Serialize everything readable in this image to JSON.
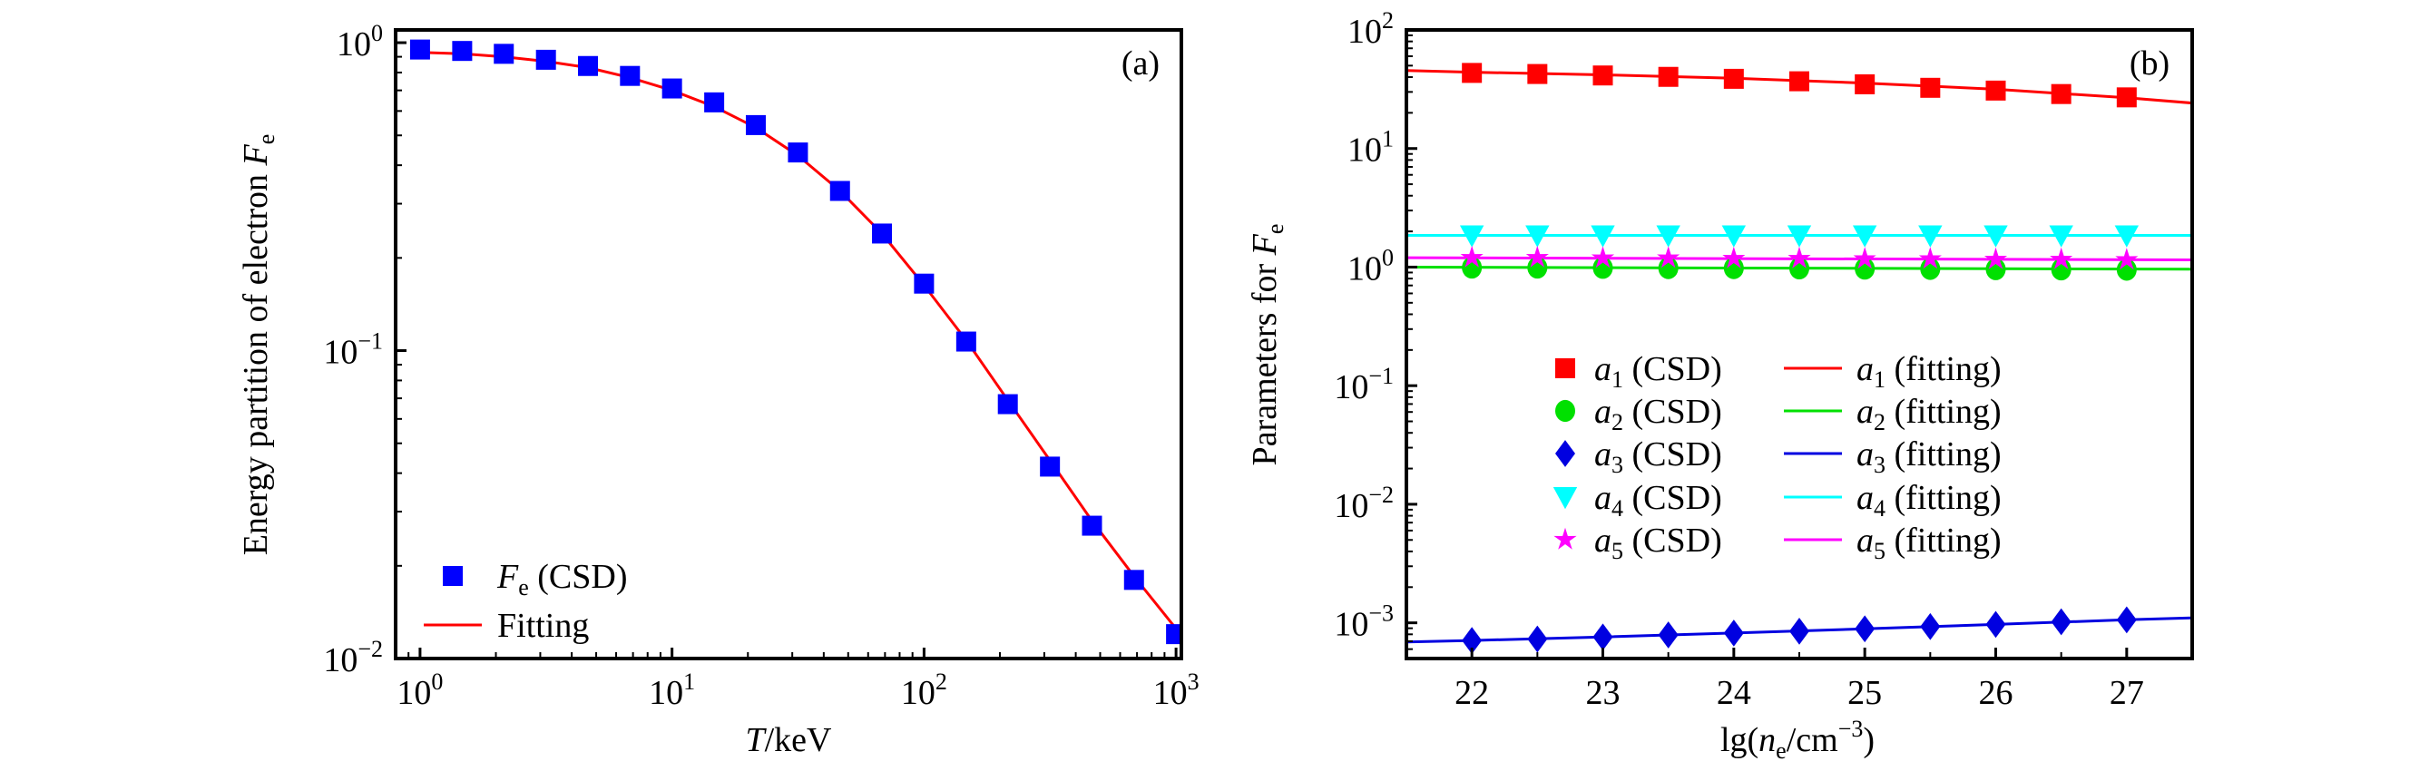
{
  "chart_data": [
    {
      "type": "scatter",
      "panel_label": "(a)",
      "xlabel": {
        "symbol": "T",
        "text": "/keV"
      },
      "ylabel": {
        "text": "Energy partition of electron ",
        "symbol": "F",
        "sub": "e"
      },
      "xscale": "log",
      "yscale": "log",
      "xlim": [
        0.8,
        1050
      ],
      "ylim": [
        0.01,
        1.1
      ],
      "grid": false,
      "legend_placement": "bottom-left",
      "xticks": [
        {
          "value": 1,
          "base": "10",
          "exp": "0"
        },
        {
          "value": 10,
          "base": "10",
          "exp": "1"
        },
        {
          "value": 100,
          "base": "10",
          "exp": "2"
        },
        {
          "value": 1000,
          "base": "10",
          "exp": "3"
        }
      ],
      "yticks": [
        {
          "value": 1,
          "base": "10",
          "exp": "0"
        },
        {
          "value": 0.1,
          "base": "10",
          "exp": "−1"
        },
        {
          "value": 0.01,
          "base": "10",
          "exp": "−2"
        }
      ],
      "series": [
        {
          "name": {
            "symbol": "F",
            "sub": "e",
            "text": " (CSD)"
          },
          "kind": "marker",
          "marker": "square",
          "color": "#0000ff",
          "x": [
            1,
            1.47,
            2.15,
            3.16,
            4.64,
            6.81,
            10,
            14.7,
            21.5,
            31.6,
            46.4,
            68.1,
            100,
            147,
            215,
            316,
            464,
            681,
            1000
          ],
          "y": [
            0.95,
            0.94,
            0.92,
            0.88,
            0.84,
            0.78,
            0.71,
            0.64,
            0.54,
            0.44,
            0.33,
            0.24,
            0.165,
            0.107,
            0.067,
            0.042,
            0.027,
            0.018,
            0.012
          ]
        },
        {
          "name": {
            "text": "Fitting"
          },
          "kind": "line",
          "color": "#ff0000",
          "x": [
            1,
            1.47,
            2.15,
            3.16,
            4.64,
            6.81,
            10,
            14.7,
            21.5,
            31.6,
            46.4,
            68.1,
            100,
            147,
            215,
            316,
            464,
            681,
            1000
          ],
          "y": [
            0.93,
            0.92,
            0.9,
            0.87,
            0.83,
            0.77,
            0.7,
            0.62,
            0.53,
            0.43,
            0.33,
            0.24,
            0.163,
            0.108,
            0.069,
            0.044,
            0.028,
            0.0185,
            0.0125
          ]
        }
      ]
    },
    {
      "type": "scatter",
      "panel_label": "(b)",
      "xlabel": {
        "pre": "lg(",
        "symbol": "n",
        "sub": "e",
        "mid": "/cm",
        "exp": "−3",
        "post": ")"
      },
      "ylabel": {
        "text": "Parameters for ",
        "symbol": "F",
        "sub": "e"
      },
      "xscale": "linear",
      "yscale": "log",
      "xlim": [
        21.5,
        27.5
      ],
      "ylim": [
        0.0005,
        100
      ],
      "grid": false,
      "legend_placement": "center",
      "xticks": [
        {
          "value": 22,
          "label": "22"
        },
        {
          "value": 23,
          "label": "23"
        },
        {
          "value": 24,
          "label": "24"
        },
        {
          "value": 25,
          "label": "25"
        },
        {
          "value": 26,
          "label": "26"
        },
        {
          "value": 27,
          "label": "27"
        }
      ],
      "yticks": [
        {
          "value": 100,
          "base": "10",
          "exp": "2"
        },
        {
          "value": 10,
          "base": "10",
          "exp": "1"
        },
        {
          "value": 1,
          "base": "10",
          "exp": "0"
        },
        {
          "value": 0.1,
          "base": "10",
          "exp": "−1"
        },
        {
          "value": 0.01,
          "base": "10",
          "exp": "−2"
        },
        {
          "value": 0.001,
          "base": "10",
          "exp": "−3"
        }
      ],
      "series": [
        {
          "name": {
            "symbol": "a",
            "sub": "1",
            "text": " (CSD)"
          },
          "kind": "marker",
          "marker": "square",
          "color": "#ff0000",
          "x": [
            22,
            22.5,
            23,
            23.5,
            24,
            24.5,
            25,
            25.5,
            26,
            26.5,
            27
          ],
          "y": [
            43.4,
            42.5,
            41.3,
            40.2,
            38.7,
            36.9,
            34.8,
            32.5,
            30.8,
            28.8,
            27.0
          ]
        },
        {
          "name": {
            "symbol": "a",
            "sub": "2",
            "text": " (CSD)"
          },
          "kind": "marker",
          "marker": "circle",
          "color": "#00e000",
          "x": [
            22,
            22.5,
            23,
            23.5,
            24,
            24.5,
            25,
            25.5,
            26,
            26.5,
            27
          ],
          "y": [
            0.99,
            0.99,
            0.985,
            0.98,
            0.98,
            0.975,
            0.97,
            0.965,
            0.96,
            0.955,
            0.95
          ]
        },
        {
          "name": {
            "symbol": "a",
            "sub": "3",
            "text": " (CSD)"
          },
          "kind": "marker",
          "marker": "diamond",
          "color": "#0000e0",
          "x": [
            22,
            22.5,
            23,
            23.5,
            24,
            24.5,
            25,
            25.5,
            26,
            26.5,
            27
          ],
          "y": [
            0.00071,
            0.00073,
            0.00076,
            0.00079,
            0.00082,
            0.00085,
            0.00089,
            0.00093,
            0.00097,
            0.00102,
            0.00106
          ]
        },
        {
          "name": {
            "symbol": "a",
            "sub": "4",
            "text": " (CSD)"
          },
          "kind": "marker",
          "marker": "triangle-down",
          "color": "#00ffff",
          "x": [
            22,
            22.5,
            23,
            23.5,
            24,
            24.5,
            25,
            25.5,
            26,
            26.5,
            27
          ],
          "y": [
            1.85,
            1.85,
            1.85,
            1.85,
            1.85,
            1.85,
            1.85,
            1.85,
            1.85,
            1.85,
            1.85
          ]
        },
        {
          "name": {
            "symbol": "a",
            "sub": "5",
            "text": " (CSD)"
          },
          "kind": "marker",
          "marker": "star",
          "color": "#ff00ff",
          "x": [
            22,
            22.5,
            23,
            23.5,
            24,
            24.5,
            25,
            25.5,
            26,
            26.5,
            27
          ],
          "y": [
            1.2,
            1.2,
            1.19,
            1.19,
            1.18,
            1.18,
            1.17,
            1.17,
            1.16,
            1.16,
            1.15
          ]
        },
        {
          "name": {
            "symbol": "a",
            "sub": "1",
            "text": " (fitting)"
          },
          "kind": "line",
          "color": "#ff0000",
          "x": [
            21.5,
            22,
            23,
            24,
            25,
            26,
            27,
            27.5
          ],
          "y": [
            45.5,
            44.0,
            41.8,
            39.2,
            35.6,
            31.6,
            26.8,
            24.2
          ]
        },
        {
          "name": {
            "symbol": "a",
            "sub": "2",
            "text": " (fitting)"
          },
          "kind": "line",
          "color": "#00e000",
          "x": [
            21.5,
            27.5
          ],
          "y": [
            1.0,
            0.96
          ]
        },
        {
          "name": {
            "symbol": "a",
            "sub": "3",
            "text": " (fitting)"
          },
          "kind": "line",
          "color": "#0000e0",
          "x": [
            21.5,
            22,
            23,
            24,
            25,
            26,
            27,
            27.5
          ],
          "y": [
            0.00069,
            0.00071,
            0.00076,
            0.00082,
            0.00089,
            0.00097,
            0.00106,
            0.0011
          ]
        },
        {
          "name": {
            "symbol": "a",
            "sub": "4",
            "text": " (fitting)"
          },
          "kind": "line",
          "color": "#00ffff",
          "x": [
            21.5,
            27.5
          ],
          "y": [
            1.85,
            1.85
          ]
        },
        {
          "name": {
            "symbol": "a",
            "sub": "5",
            "text": " (fitting)"
          },
          "kind": "line",
          "color": "#ff00ff",
          "x": [
            21.5,
            27.5
          ],
          "y": [
            1.2,
            1.15
          ]
        }
      ]
    }
  ]
}
